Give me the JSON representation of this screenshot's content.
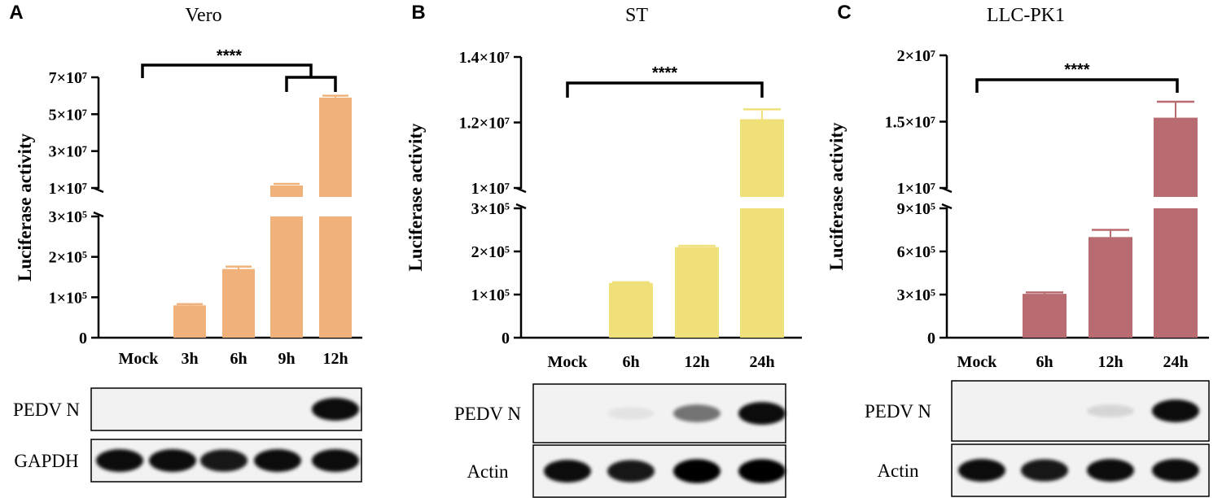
{
  "chart_data": [
    {
      "panel_letter": "A",
      "title": "Vero",
      "type": "bar",
      "ylabel": "Luciferase activity",
      "categories": [
        "Mock",
        "3h",
        "6h",
        "9h",
        "12h"
      ],
      "values": [
        0,
        80000,
        170000,
        9000000,
        59000000
      ],
      "errors": [
        0,
        3000,
        6000,
        300000,
        1000000
      ],
      "ylim": [
        0,
        70000000
      ],
      "axis_break": {
        "lower": [
          0,
          300000
        ],
        "upper": [
          10000000,
          70000000
        ]
      },
      "yticks_lower": [
        "0",
        "1×10⁵",
        "2×10⁵",
        "3×10⁵"
      ],
      "yticks_upper": [
        "1×10⁷",
        "3×10⁷",
        "5×10⁷",
        "7×10⁷"
      ],
      "bar_color": "#f0b27a",
      "significance": "****",
      "blot": {
        "rows": [
          "PEDV N",
          "GAPDH"
        ]
      }
    },
    {
      "panel_letter": "B",
      "title": "ST",
      "type": "bar",
      "ylabel": "Luciferase activity",
      "categories": [
        "Mock",
        "6h",
        "12h",
        "24h"
      ],
      "values": [
        0,
        127000,
        210000,
        12100000
      ],
      "errors": [
        0,
        1500,
        3000,
        300000
      ],
      "ylim": [
        0,
        14000000
      ],
      "axis_break": {
        "lower": [
          0,
          300000
        ],
        "upper": [
          10000000,
          14000000
        ]
      },
      "yticks_lower": [
        "0",
        "1×10⁵",
        "2×10⁵",
        "3×10⁵"
      ],
      "yticks_upper": [
        "1×10⁷",
        "1.2×10⁷",
        "1.4×10⁷"
      ],
      "bar_color": "#f0e07a",
      "significance": "****",
      "blot": {
        "rows": [
          "PEDV N",
          "Actin"
        ]
      }
    },
    {
      "panel_letter": "C",
      "title": "LLC-PK1",
      "type": "bar",
      "ylabel": "Luciferase activity",
      "categories": [
        "Mock",
        "6h",
        "12h",
        "24h"
      ],
      "values": [
        0,
        305000,
        700000,
        15300000
      ],
      "errors": [
        0,
        10000,
        50000,
        1200000
      ],
      "ylim": [
        0,
        20000000
      ],
      "axis_break": {
        "lower": [
          0,
          900000
        ],
        "upper": [
          10000000,
          20000000
        ]
      },
      "yticks_lower": [
        "0",
        "3×10⁵",
        "6×10⁵",
        "9×10⁵"
      ],
      "yticks_upper": [
        "1×10⁷",
        "1.5×10⁷",
        "2×10⁷"
      ],
      "bar_color": "#b86b70",
      "significance": "****",
      "blot": {
        "rows": [
          "PEDV N",
          "Actin"
        ]
      }
    }
  ]
}
